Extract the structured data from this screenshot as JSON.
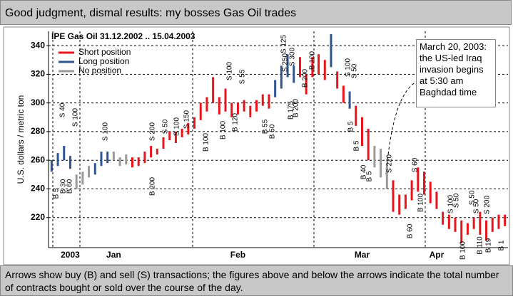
{
  "header_title": "Good judgment, dismal results: my bosses Gas Oil trades",
  "caption": "Arrows show buy (B) and sell (S) transactions; the figures above and below the arrows indicate the total number of contracts bought or sold over the course of the day.",
  "chart_data": {
    "type": "hilo",
    "title": "IPE Gas Oil 31.12.2002 .. 15.04.2003",
    "y_label": "U.S. dollars / metric ton",
    "ylim": [
      199,
      350
    ],
    "yticks": [
      220,
      240,
      260,
      280,
      300,
      320,
      340
    ],
    "grid": true,
    "categories": [
      null,
      null,
      null,
      "2003",
      null,
      null,
      null,
      null,
      null,
      null,
      "Jan",
      null,
      null,
      null,
      null,
      null,
      null,
      null,
      null,
      null,
      null,
      null,
      null,
      null,
      null,
      null,
      null,
      null,
      null,
      null,
      "Feb",
      null,
      null,
      null,
      null,
      null,
      null,
      null,
      null,
      null,
      null,
      null,
      null,
      null,
      null,
      null,
      null,
      null,
      null,
      null,
      "Mar",
      null,
      null,
      null,
      null,
      null,
      null,
      null,
      null,
      null,
      null,
      null,
      "Apr",
      null,
      null,
      null,
      null,
      null,
      null,
      null,
      null,
      null,
      null,
      null
    ],
    "series": [
      {
        "name": "Short position",
        "color": "#e8141b",
        "high": [
          null,
          null,
          null,
          null,
          null,
          null,
          null,
          null,
          null,
          null,
          null,
          null,
          null,
          262,
          262,
          266,
          270,
          268,
          276,
          280,
          280,
          282,
          286,
          290,
          300,
          304,
          318,
          304,
          310,
          300,
          300,
          302,
          298,
          302,
          306,
          306,
          null,
          null,
          null,
          null,
          332,
          320,
          332,
          334,
          330,
          null,
          322,
          312,
          null,
          298,
          290,
          282,
          null,
          null,
          null,
          246,
          236,
          236,
          246,
          255,
          252,
          245,
          238,
          224,
          222,
          220,
          218,
          216,
          220,
          224,
          218,
          220,
          222,
          222
        ],
        "low": [
          null,
          null,
          null,
          null,
          null,
          null,
          null,
          null,
          null,
          null,
          null,
          null,
          null,
          255,
          256,
          258,
          262,
          264,
          268,
          274,
          272,
          276,
          278,
          282,
          288,
          294,
          300,
          292,
          294,
          290,
          292,
          294,
          290,
          294,
          298,
          296,
          null,
          null,
          null,
          null,
          318,
          306,
          318,
          320,
          316,
          null,
          310,
          300,
          null,
          284,
          270,
          260,
          null,
          null,
          null,
          224,
          222,
          226,
          232,
          238,
          236,
          230,
          226,
          215,
          212,
          210,
          202,
          208,
          212,
          208,
          204,
          210,
          212,
          214
        ]
      },
      {
        "name": "Long position",
        "color": "#2e5590",
        "high": [
          260,
          265,
          270,
          263,
          null,
          null,
          null,
          258,
          266,
          266,
          null,
          null,
          null,
          null,
          null,
          null,
          null,
          null,
          null,
          null,
          null,
          null,
          null,
          null,
          null,
          null,
          null,
          null,
          null,
          null,
          null,
          null,
          null,
          null,
          null,
          null,
          316,
          326,
          334,
          326,
          null,
          null,
          null,
          null,
          null,
          348,
          null,
          null,
          308,
          null,
          null,
          null,
          null,
          null,
          null,
          null,
          null,
          null,
          null,
          null,
          null,
          null,
          null,
          null,
          null,
          null,
          null,
          null,
          null,
          null,
          null,
          null,
          null,
          null
        ],
        "low": [
          252,
          256,
          260,
          254,
          null,
          null,
          null,
          250,
          256,
          258,
          null,
          null,
          null,
          null,
          null,
          null,
          null,
          null,
          null,
          null,
          null,
          null,
          null,
          null,
          null,
          null,
          null,
          null,
          null,
          null,
          null,
          null,
          null,
          null,
          null,
          null,
          304,
          310,
          318,
          314,
          null,
          null,
          null,
          null,
          null,
          325,
          null,
          null,
          296,
          null,
          null,
          null,
          null,
          null,
          null,
          null,
          null,
          null,
          null,
          null,
          null,
          null,
          null,
          null,
          null,
          null,
          null,
          null,
          null,
          null,
          null,
          null,
          null,
          null
        ]
      },
      {
        "name": "No position",
        "color": "#999999",
        "high": [
          null,
          null,
          null,
          null,
          250,
          252,
          256,
          null,
          null,
          null,
          266,
          262,
          264,
          null,
          null,
          null,
          null,
          null,
          null,
          null,
          null,
          null,
          null,
          null,
          null,
          null,
          null,
          null,
          null,
          null,
          null,
          null,
          null,
          null,
          null,
          null,
          null,
          null,
          null,
          null,
          null,
          null,
          null,
          null,
          null,
          null,
          null,
          null,
          null,
          null,
          null,
          null,
          270,
          268,
          258,
          null,
          null,
          null,
          null,
          null,
          null,
          null,
          null,
          null,
          null,
          null,
          null,
          null,
          null,
          null,
          null,
          null,
          null,
          null
        ],
        "low": [
          null,
          null,
          null,
          null,
          240,
          243,
          248,
          null,
          null,
          null,
          260,
          256,
          257,
          null,
          null,
          null,
          null,
          null,
          null,
          null,
          null,
          null,
          null,
          null,
          null,
          null,
          null,
          null,
          null,
          null,
          null,
          null,
          null,
          null,
          null,
          null,
          null,
          null,
          null,
          null,
          null,
          null,
          null,
          null,
          null,
          null,
          null,
          null,
          null,
          null,
          null,
          null,
          255,
          248,
          240,
          null,
          null,
          null,
          null,
          null,
          null,
          null,
          null,
          null,
          null,
          null,
          null,
          null,
          null,
          null,
          null,
          null,
          null,
          null
        ]
      }
    ],
    "annotations": [
      "S 40",
      "S 100",
      "B 5",
      "B 30",
      "B 60",
      "S 100",
      "S 200",
      "B 200",
      "S 50",
      "S 100",
      "S 150",
      "B 100",
      "B 100",
      "S 100",
      "B 120",
      "S 55",
      "B 55",
      "B 50",
      "S 125",
      "S 250",
      "S 300",
      "B 175",
      "B 200",
      "B 200",
      "B 100",
      "S 100",
      "S 50",
      "B 5",
      "B 5",
      "B 40",
      "B 5",
      "S 220",
      "S 60",
      "B 100",
      "B 60",
      "S 100",
      "S 50",
      "S 50",
      "S 50",
      "B 100",
      "S 200",
      "B 110",
      "B 19",
      "B 1"
    ],
    "callout": "March 20, 2003: the US-led Iraq invasion begins at 5:30 am Baghdad time"
  }
}
